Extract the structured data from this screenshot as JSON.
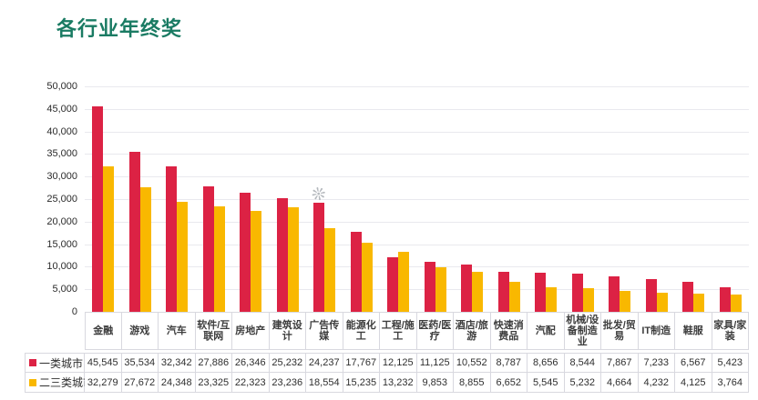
{
  "title": "各行业年终奖",
  "colors": {
    "title": "#1a7b63",
    "series1": "#dc2244",
    "series2": "#f9b800",
    "grid": "#e9e9ee",
    "table_border": "#d8d8df"
  },
  "watermark_glyph": "❊",
  "chart_data": {
    "type": "bar",
    "title": "各行业年终奖",
    "categories": [
      "金融",
      "游戏",
      "汽车",
      "软件/互联网",
      "房地产",
      "建筑设计",
      "广告传媒",
      "能源化工",
      "工程/施工",
      "医药/医疗",
      "酒店/旅游",
      "快速消费品",
      "汽配",
      "机械/设备制造业",
      "批发/贸易",
      "IT制造",
      "鞋服",
      "家具/家装"
    ],
    "series": [
      {
        "name": "一类城市",
        "color": "#dc2244",
        "values": [
          45545,
          35534,
          32342,
          27886,
          26346,
          25232,
          24237,
          17767,
          12125,
          11125,
          10552,
          8787,
          8656,
          8544,
          7867,
          7233,
          6567,
          5423
        ]
      },
      {
        "name": "二三类城市",
        "color": "#f9b800",
        "values": [
          32279,
          27672,
          24348,
          23325,
          22323,
          23236,
          18554,
          15235,
          13232,
          9853,
          8855,
          6652,
          5545,
          5232,
          4664,
          4232,
          4125,
          3764
        ]
      }
    ],
    "ylim": [
      0,
      50000
    ],
    "yticks": [
      0,
      5000,
      10000,
      15000,
      20000,
      25000,
      30000,
      35000,
      40000,
      45000,
      50000
    ],
    "grid": true,
    "legend_position": "data-table-left",
    "data_table": true
  }
}
